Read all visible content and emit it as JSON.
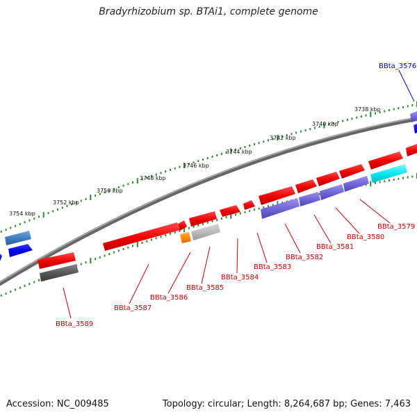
{
  "title": "Bradyrhizobium sp. BTAi1, complete genome",
  "accession": "Accession: NC_009485",
  "summary": "Topology: circular; Length: 8,264,687 bp; Genes: 7,463",
  "ruler": {
    "ticks": [
      "3738 kbp",
      "3740 kbp",
      "3742 kbp",
      "3744 kbp",
      "3746 kbp",
      "3748 kbp",
      "3750 kbp",
      "3752 kbp",
      "3754 kbp"
    ]
  },
  "genes": [
    {
      "id": "BBta_3576",
      "color": "#0000cc"
    },
    {
      "id": "BBta_3579",
      "color": "#cc0000"
    },
    {
      "id": "BBta_3580",
      "color": "#cc0000"
    },
    {
      "id": "BBta_3581",
      "color": "#cc0000"
    },
    {
      "id": "BBta_3582",
      "color": "#cc0000"
    },
    {
      "id": "BBta_3583",
      "color": "#cc0000"
    },
    {
      "id": "BBta_3584",
      "color": "#cc0000"
    },
    {
      "id": "BBta_3585",
      "color": "#cc0000"
    },
    {
      "id": "BBta_3586",
      "color": "#cc0000"
    },
    {
      "id": "BBta_3587",
      "color": "#cc0000"
    },
    {
      "id": "BBta_3589",
      "color": "#cc0000"
    }
  ],
  "colors": {
    "backbone": "#8a8a8a",
    "forward_cds": "#ee0000",
    "reverse_cds": "#0000ee",
    "purple_feature": "#6f63d6",
    "cyan_feature": "#00e6f0",
    "orange_feature": "#ff8800",
    "grey_feature": "#b8b8b8",
    "dark_grey_feature": "#555555",
    "steelblue_feature": "#3e7bbf",
    "tick_dots": "#2e8b2e"
  }
}
